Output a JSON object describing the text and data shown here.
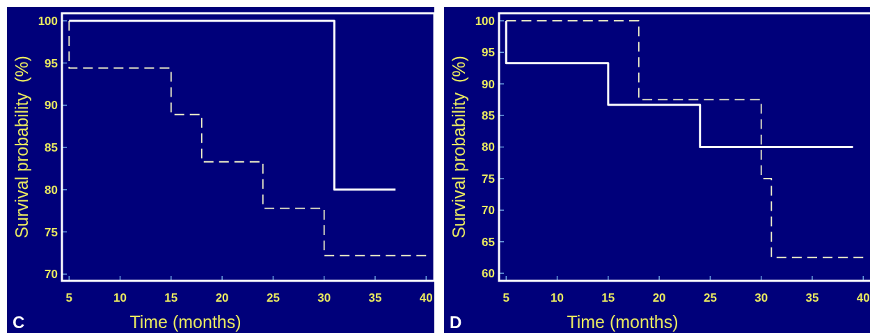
{
  "chart_data": [
    {
      "type": "step",
      "xlabel": "Time (months)",
      "ylabel": "Survival probability  (%)",
      "annotations": [
        "C"
      ],
      "xlim": [
        4.3,
        40.8
      ],
      "ylim": [
        69.2,
        100.9
      ],
      "xticks": [
        5,
        10,
        15,
        20,
        25,
        30,
        35,
        40
      ],
      "yticks": [
        70,
        75,
        80,
        85,
        90,
        95,
        100
      ],
      "grid": false,
      "series": [
        {
          "color": "#ffffff",
          "line_style": "solid",
          "x": [
            5,
            31,
            37
          ],
          "values": [
            100,
            80,
            80
          ]
        },
        {
          "color": "#f0f0c8",
          "line_style": "dashed",
          "x": [
            5,
            5,
            15,
            18,
            24,
            30,
            40
          ],
          "values": [
            100,
            94.4,
            88.9,
            83.3,
            77.8,
            72.2,
            72.2
          ]
        }
      ]
    },
    {
      "type": "step",
      "xlabel": "Time (months)",
      "ylabel": "Survival probability  (%)",
      "annotations": [
        "D"
      ],
      "xlim": [
        4.3,
        40.8
      ],
      "ylim": [
        58.8,
        101.2
      ],
      "xticks": [
        5,
        10,
        15,
        20,
        25,
        30,
        35,
        40
      ],
      "yticks": [
        60,
        65,
        70,
        75,
        80,
        85,
        90,
        95,
        100
      ],
      "grid": false,
      "series": [
        {
          "color": "#ffffff",
          "line_style": "solid",
          "x": [
            5,
            5,
            15,
            24,
            39
          ],
          "values": [
            100,
            93.3,
            86.7,
            80,
            80
          ]
        },
        {
          "color": "#f0f0c8",
          "line_style": "dashed",
          "x": [
            5,
            18,
            30,
            31,
            40
          ],
          "values": [
            100,
            87.5,
            75,
            62.5,
            62.5
          ]
        }
      ]
    }
  ]
}
